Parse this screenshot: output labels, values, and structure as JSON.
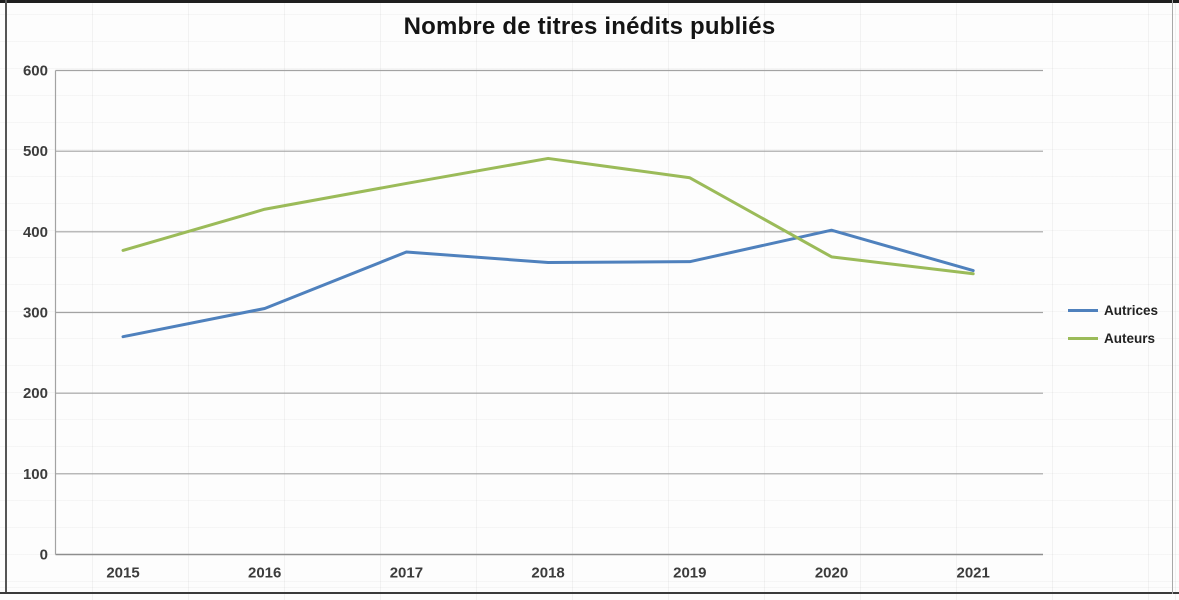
{
  "chart_data": {
    "type": "line",
    "title": "Nombre de titres inédits publiés",
    "xlabel": "",
    "ylabel": "",
    "categories": [
      "2015",
      "2016",
      "2017",
      "2018",
      "2019",
      "2020",
      "2021"
    ],
    "series": [
      {
        "name": "Autrices",
        "color": "#4f81bd",
        "values": [
          270,
          305,
          375,
          362,
          363,
          402,
          352
        ]
      },
      {
        "name": "Auteurs",
        "color": "#9bbb59",
        "values": [
          377,
          428,
          460,
          491,
          467,
          369,
          348
        ]
      }
    ],
    "ylim": [
      0,
      600
    ],
    "yticks": [
      0,
      100,
      200,
      300,
      400,
      500,
      600
    ],
    "grid": "horizontal",
    "legend_position": "right"
  },
  "style": {
    "gridline_color": "#a3a3a3",
    "axis_line_color": "#8e8e8e",
    "tick_label_color": "#3c3c3c",
    "title_color": "#141414",
    "frame_color": "#1f1f1f",
    "background_color": "#fdfdfd"
  }
}
